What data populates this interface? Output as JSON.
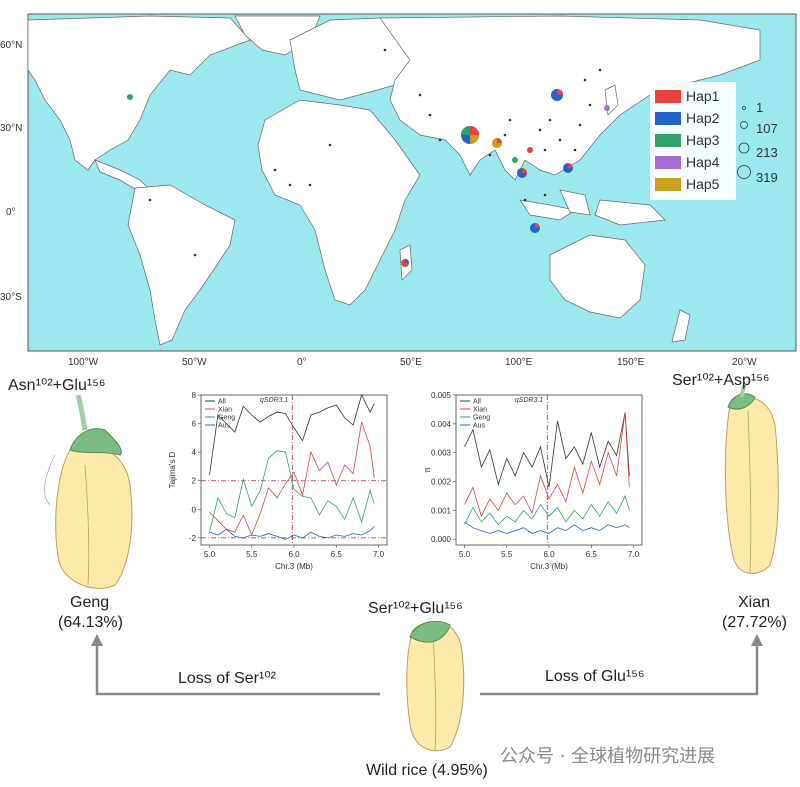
{
  "map": {
    "lat_labels": [
      "60°N",
      "30°N",
      "0°",
      "30°S"
    ],
    "lon_labels": [
      "100°W",
      "50°W",
      "0°",
      "50°E",
      "100°E",
      "150°E",
      "20°W"
    ],
    "legend_haps": [
      {
        "name": "Hap1",
        "color": "#e8413e"
      },
      {
        "name": "Hap2",
        "color": "#2563c9"
      },
      {
        "name": "Hap3",
        "color": "#2fa36b"
      },
      {
        "name": "Hap4",
        "color": "#a66cd6"
      },
      {
        "name": "Hap5",
        "color": "#c8a21a"
      }
    ],
    "legend_sizes": [
      "1",
      "107",
      "213",
      "319"
    ],
    "colors": {
      "ocean": "#9be9ee",
      "land": "#ffffff",
      "border": "#666666"
    }
  },
  "chart_data": [
    {
      "type": "line",
      "xlabel": "Chr.3 (Mb)",
      "ylabel": "Tajima's D",
      "xlim": [
        4.9,
        7.1
      ],
      "ylim": [
        -2.5,
        8
      ],
      "xticks": [
        "5.0",
        "5.5",
        "6.0",
        "6.5",
        "7.0"
      ],
      "yticks": [
        "-2",
        "0",
        "2",
        "4",
        "6",
        "8"
      ],
      "annotation": "qSDR3.1",
      "marker_x": 5.98,
      "reference_lines": [
        2,
        -2
      ],
      "x": [
        5.0,
        5.1,
        5.2,
        5.3,
        5.4,
        5.5,
        5.6,
        5.7,
        5.8,
        5.9,
        6.0,
        6.1,
        6.2,
        6.3,
        6.4,
        6.5,
        6.6,
        6.7,
        6.8,
        6.9,
        6.95
      ],
      "series": [
        {
          "name": "All",
          "color": "#333333",
          "values": [
            2.4,
            6.6,
            6.0,
            5.4,
            7.2,
            6.6,
            6.1,
            6.5,
            6.8,
            6.7,
            5.7,
            4.8,
            6.6,
            6.8,
            7.1,
            7.3,
            6.4,
            5.9,
            8.0,
            6.8,
            7.4
          ]
        },
        {
          "name": "Xian",
          "color": "#d9453f",
          "values": [
            -0.2,
            -0.8,
            -1.4,
            -1.6,
            -0.4,
            -1.8,
            -0.3,
            1.5,
            0.8,
            1.8,
            2.6,
            1.0,
            4.0,
            2.7,
            3.3,
            1.7,
            3.1,
            2.5,
            6.1,
            4.4,
            2.2
          ]
        },
        {
          "name": "Geng",
          "color": "#2fa36b",
          "values": [
            -1.6,
            0.8,
            -0.3,
            -0.6,
            2.1,
            0.2,
            1.3,
            3.6,
            4.1,
            4.0,
            1.4,
            0.9,
            0.8,
            -0.4,
            0.6,
            0.2,
            -0.7,
            0.8,
            -0.9,
            1.3,
            0.4
          ]
        },
        {
          "name": "Aus",
          "color": "#2563c9",
          "values": [
            -1.6,
            -1.8,
            -1.4,
            -1.9,
            -2.0,
            -1.8,
            -1.9,
            -1.7,
            -1.9,
            -2.1,
            -1.8,
            -2.0,
            -1.6,
            -1.9,
            -2.0,
            -1.8,
            -1.9,
            -1.7,
            -1.8,
            -1.5,
            -1.2
          ]
        }
      ]
    },
    {
      "type": "line",
      "xlabel": "Chr.3 (Mb)",
      "ylabel": "π",
      "xlim": [
        4.9,
        7.1
      ],
      "ylim": [
        -0.0002,
        0.005
      ],
      "xticks": [
        "5.0",
        "5.5",
        "6.0",
        "6.5",
        "7.0"
      ],
      "yticks": [
        "0.000",
        "0.001",
        "0.002",
        "0.003",
        "0.004",
        "0.005"
      ],
      "annotation": "qSDR3.1",
      "marker_x": 5.98,
      "x": [
        5.0,
        5.1,
        5.2,
        5.3,
        5.4,
        5.5,
        5.6,
        5.7,
        5.8,
        5.9,
        6.0,
        6.1,
        6.2,
        6.3,
        6.4,
        6.5,
        6.6,
        6.7,
        6.8,
        6.9,
        6.95
      ],
      "series": [
        {
          "name": "All",
          "color": "#333333",
          "values": [
            0.0032,
            0.0038,
            0.0025,
            0.0031,
            0.0019,
            0.0028,
            0.0022,
            0.003,
            0.0025,
            0.0032,
            0.0018,
            0.0041,
            0.0028,
            0.0032,
            0.0026,
            0.0037,
            0.0025,
            0.0034,
            0.0029,
            0.0044,
            0.0022
          ]
        },
        {
          "name": "Xian",
          "color": "#d9453f",
          "values": [
            0.0012,
            0.0018,
            0.0008,
            0.0014,
            0.001,
            0.0016,
            0.0012,
            0.0015,
            0.0009,
            0.0022,
            0.0014,
            0.0019,
            0.0013,
            0.0025,
            0.0016,
            0.0027,
            0.0019,
            0.003,
            0.0022,
            0.0044,
            0.0018
          ]
        },
        {
          "name": "Geng",
          "color": "#2fa36b",
          "values": [
            0.0005,
            0.0011,
            0.0006,
            0.0009,
            0.0005,
            0.0008,
            0.0006,
            0.001,
            0.0007,
            0.0012,
            0.0008,
            0.0011,
            0.0006,
            0.001,
            0.0007,
            0.0012,
            0.0008,
            0.0013,
            0.0009,
            0.0015,
            0.001
          ]
        },
        {
          "name": "Aus",
          "color": "#2563c9",
          "values": [
            0.0006,
            0.0004,
            0.0003,
            0.0002,
            0.0003,
            0.0002,
            0.0003,
            0.0004,
            0.0002,
            0.0003,
            0.0002,
            0.0004,
            0.0003,
            0.0005,
            0.0003,
            0.0004,
            0.0003,
            0.0005,
            0.0004,
            0.0005,
            0.0004
          ]
        }
      ]
    }
  ],
  "labels": {
    "geng_allele": "Asn¹⁰²+Glu¹⁵⁶",
    "xian_allele": "Ser¹⁰²+Asp¹⁵⁶",
    "wild_allele": "Ser¹⁰²+Glu¹⁵⁶",
    "geng_name": "Geng",
    "geng_pct": "(64.13%)",
    "xian_name": "Xian",
    "xian_pct": "(27.72%)",
    "wild": "Wild rice (4.95%)",
    "loss_ser": "Loss of Ser¹⁰²",
    "loss_glu": "Loss of Glu¹⁵⁶"
  },
  "watermark": "公众号 · 全球植物研究进展"
}
